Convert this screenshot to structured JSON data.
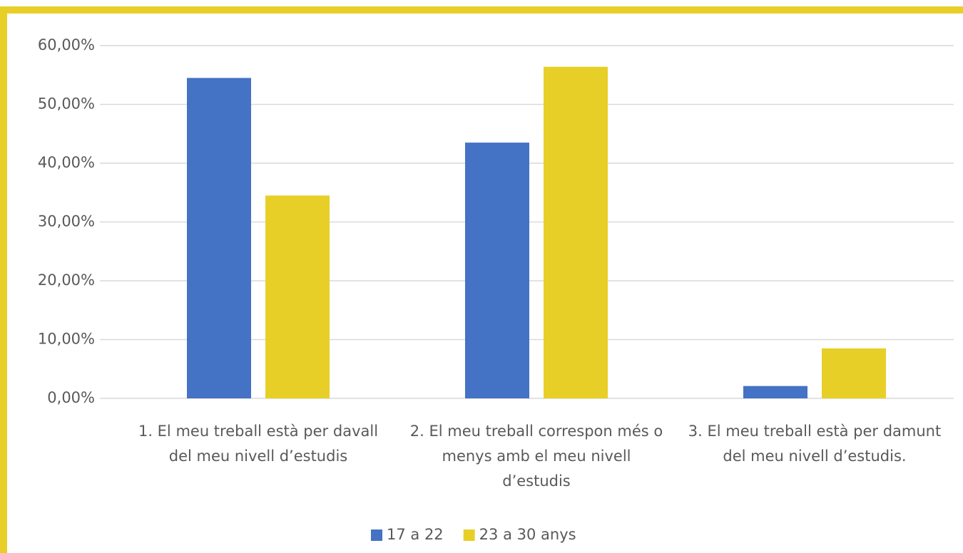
{
  "chart_data": {
    "type": "bar",
    "categories": [
      "1. El meu treball està per davall del meu nivell d’estudis",
      "2. El meu treball correspon més o menys amb el meu nivell d’estudis",
      "3. El meu treball està per damunt del meu nivell d’estudis."
    ],
    "series": [
      {
        "name": "17 a 22",
        "color": "#4472c4",
        "values": [
          54.5,
          43.5,
          2.1
        ]
      },
      {
        "name": "23 a 30 anys",
        "color": "#e8cf28",
        "values": [
          34.5,
          56.4,
          8.5
        ]
      }
    ],
    "ylim": [
      0,
      60
    ],
    "yticks": [
      {
        "value": 0,
        "label": "0,00%"
      },
      {
        "value": 10,
        "label": "10,00%"
      },
      {
        "value": 20,
        "label": "20,00%"
      },
      {
        "value": 30,
        "label": "30,00%"
      },
      {
        "value": 40,
        "label": "40,00%"
      },
      {
        "value": 50,
        "label": "50,00%"
      },
      {
        "value": 60,
        "label": "60,00%"
      }
    ],
    "grid": true,
    "legend": "bottom"
  }
}
